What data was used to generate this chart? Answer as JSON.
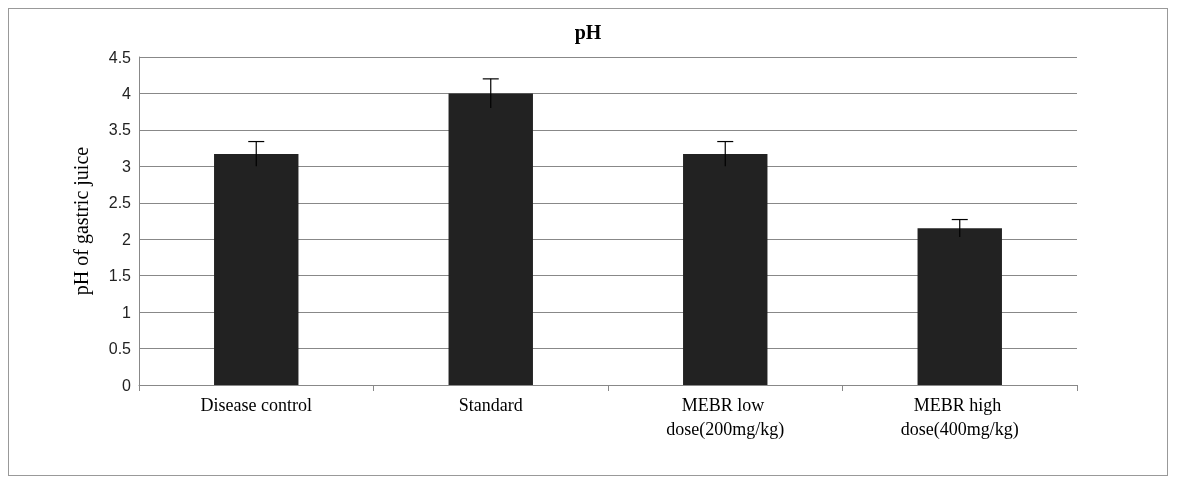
{
  "chart_data": {
    "type": "bar",
    "title": "pH",
    "ylabel": "pH of gastric juice",
    "categories": [
      "Disease control",
      "Standard",
      "MEBR low dose(200mg/kg)",
      "MEBR high dose(400mg/kg)"
    ],
    "values": [
      3.17,
      4.0,
      3.17,
      2.15
    ],
    "errors": [
      0.17,
      0.2,
      0.17,
      0.12
    ],
    "color": "#222222",
    "ylim": [
      0,
      4.5
    ],
    "yticks": [
      0,
      0.5,
      1,
      1.5,
      2,
      2.5,
      3,
      3.5,
      4,
      4.5
    ],
    "grid": "y"
  }
}
